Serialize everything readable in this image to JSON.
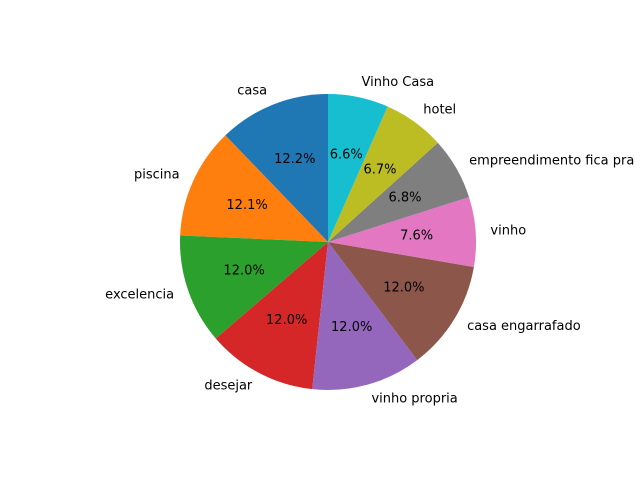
{
  "chart_data": {
    "type": "pie",
    "title": "",
    "start_angle_deg": 90,
    "direction": "counterclockwise",
    "categories": [
      "casa",
      "piscina",
      "excelencia",
      "desejar",
      "vinho propria",
      "casa engarrafado",
      "vinho",
      "empreendimento fica pra",
      "hotel",
      "Vinho Casa"
    ],
    "values": [
      12.2,
      12.1,
      12.0,
      12.0,
      12.0,
      12.0,
      7.6,
      6.8,
      6.7,
      6.6
    ],
    "value_labels": [
      "12.2%",
      "12.1%",
      "12.0%",
      "12.0%",
      "12.0%",
      "12.0%",
      "7.6%",
      "6.8%",
      "6.7%",
      "6.6%"
    ],
    "colors": [
      "#1f77b4",
      "#ff7f0e",
      "#2ca02c",
      "#d62728",
      "#9467bd",
      "#8c564b",
      "#e377c2",
      "#7f7f7f",
      "#bcbd22",
      "#17becf"
    ]
  }
}
